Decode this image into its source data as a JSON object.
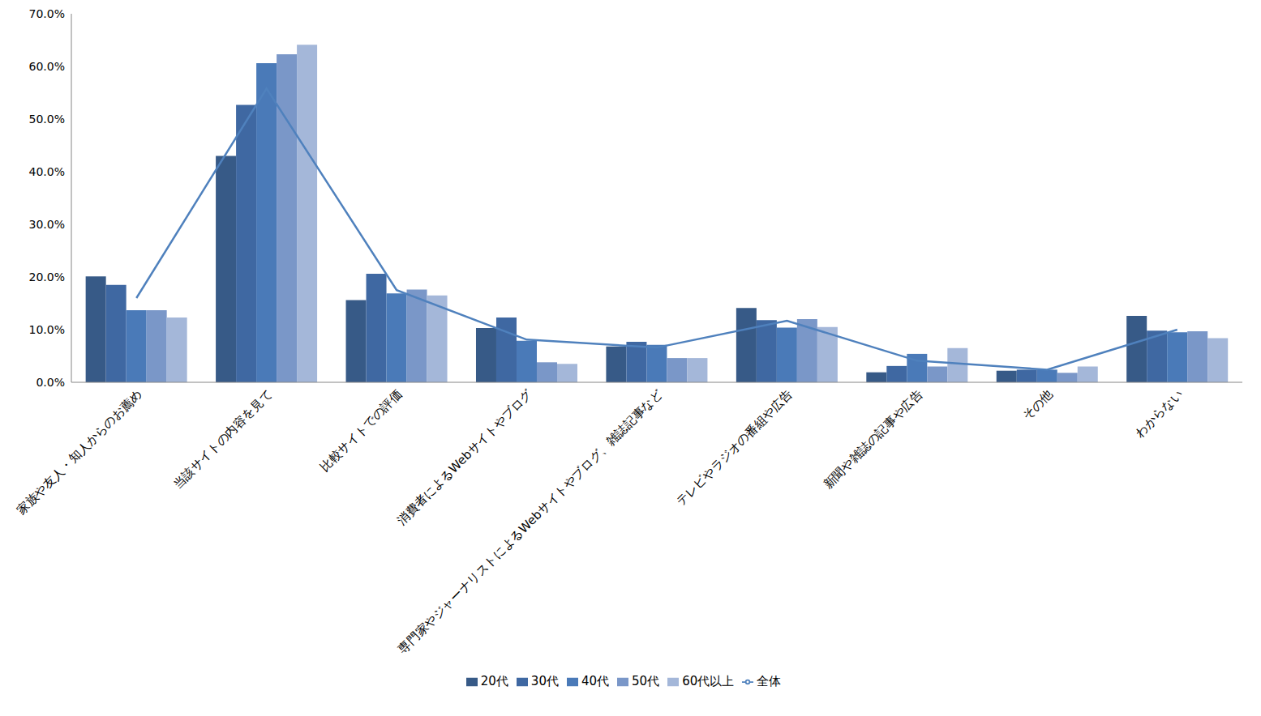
{
  "chart_data": {
    "type": "bar",
    "categories": [
      "家族や友人・知人からのお薦め",
      "当該サイトの内容を見て",
      "比較サイトでの評価",
      "消費者によるWebサイトやブログ",
      "専門家やジャーナリストによるWebサイトやブログ、雑誌記事など",
      "テレビやラジオの番組や広告",
      "新聞や雑誌の記事や広告",
      "その他",
      "わからない"
    ],
    "series": [
      {
        "name": "20代",
        "type": "bar",
        "color": "#375a87",
        "values": [
          20.1,
          43.0,
          15.6,
          10.3,
          6.8,
          14.1,
          1.9,
          2.2,
          12.6
        ]
      },
      {
        "name": "30代",
        "type": "bar",
        "color": "#3f68a2",
        "values": [
          18.5,
          52.7,
          20.6,
          12.3,
          7.7,
          11.8,
          3.1,
          2.4,
          9.8
        ]
      },
      {
        "name": "40代",
        "type": "bar",
        "color": "#4a7ab8",
        "values": [
          13.7,
          60.6,
          16.9,
          7.9,
          7.1,
          10.4,
          5.4,
          2.4,
          9.5
        ]
      },
      {
        "name": "50代",
        "type": "bar",
        "color": "#7a97c8",
        "values": [
          13.7,
          62.3,
          17.6,
          3.8,
          4.6,
          12.0,
          3.0,
          1.8,
          9.7
        ]
      },
      {
        "name": "60代以上",
        "type": "bar",
        "color": "#a4b7d9",
        "values": [
          12.3,
          64.1,
          16.5,
          3.5,
          4.6,
          10.5,
          6.5,
          3.0,
          8.4
        ]
      },
      {
        "name": "全体",
        "type": "line",
        "color": "#4f81bd",
        "values": [
          16.0,
          55.8,
          17.5,
          8.1,
          6.6,
          11.7,
          4.1,
          2.4,
          10.0
        ]
      }
    ],
    "ylim": [
      0,
      70
    ],
    "yticks": [
      {
        "value": 0,
        "label": "0.0%"
      },
      {
        "value": 10,
        "label": "10.0%"
      },
      {
        "value": 20,
        "label": "20.0%"
      },
      {
        "value": 30,
        "label": "30.0%"
      },
      {
        "value": 40,
        "label": "40.0%"
      },
      {
        "value": 50,
        "label": "50.0%"
      },
      {
        "value": 60,
        "label": "60.0%"
      },
      {
        "value": 70,
        "label": "70.0%"
      }
    ],
    "grid": false,
    "legend": "bottom"
  }
}
